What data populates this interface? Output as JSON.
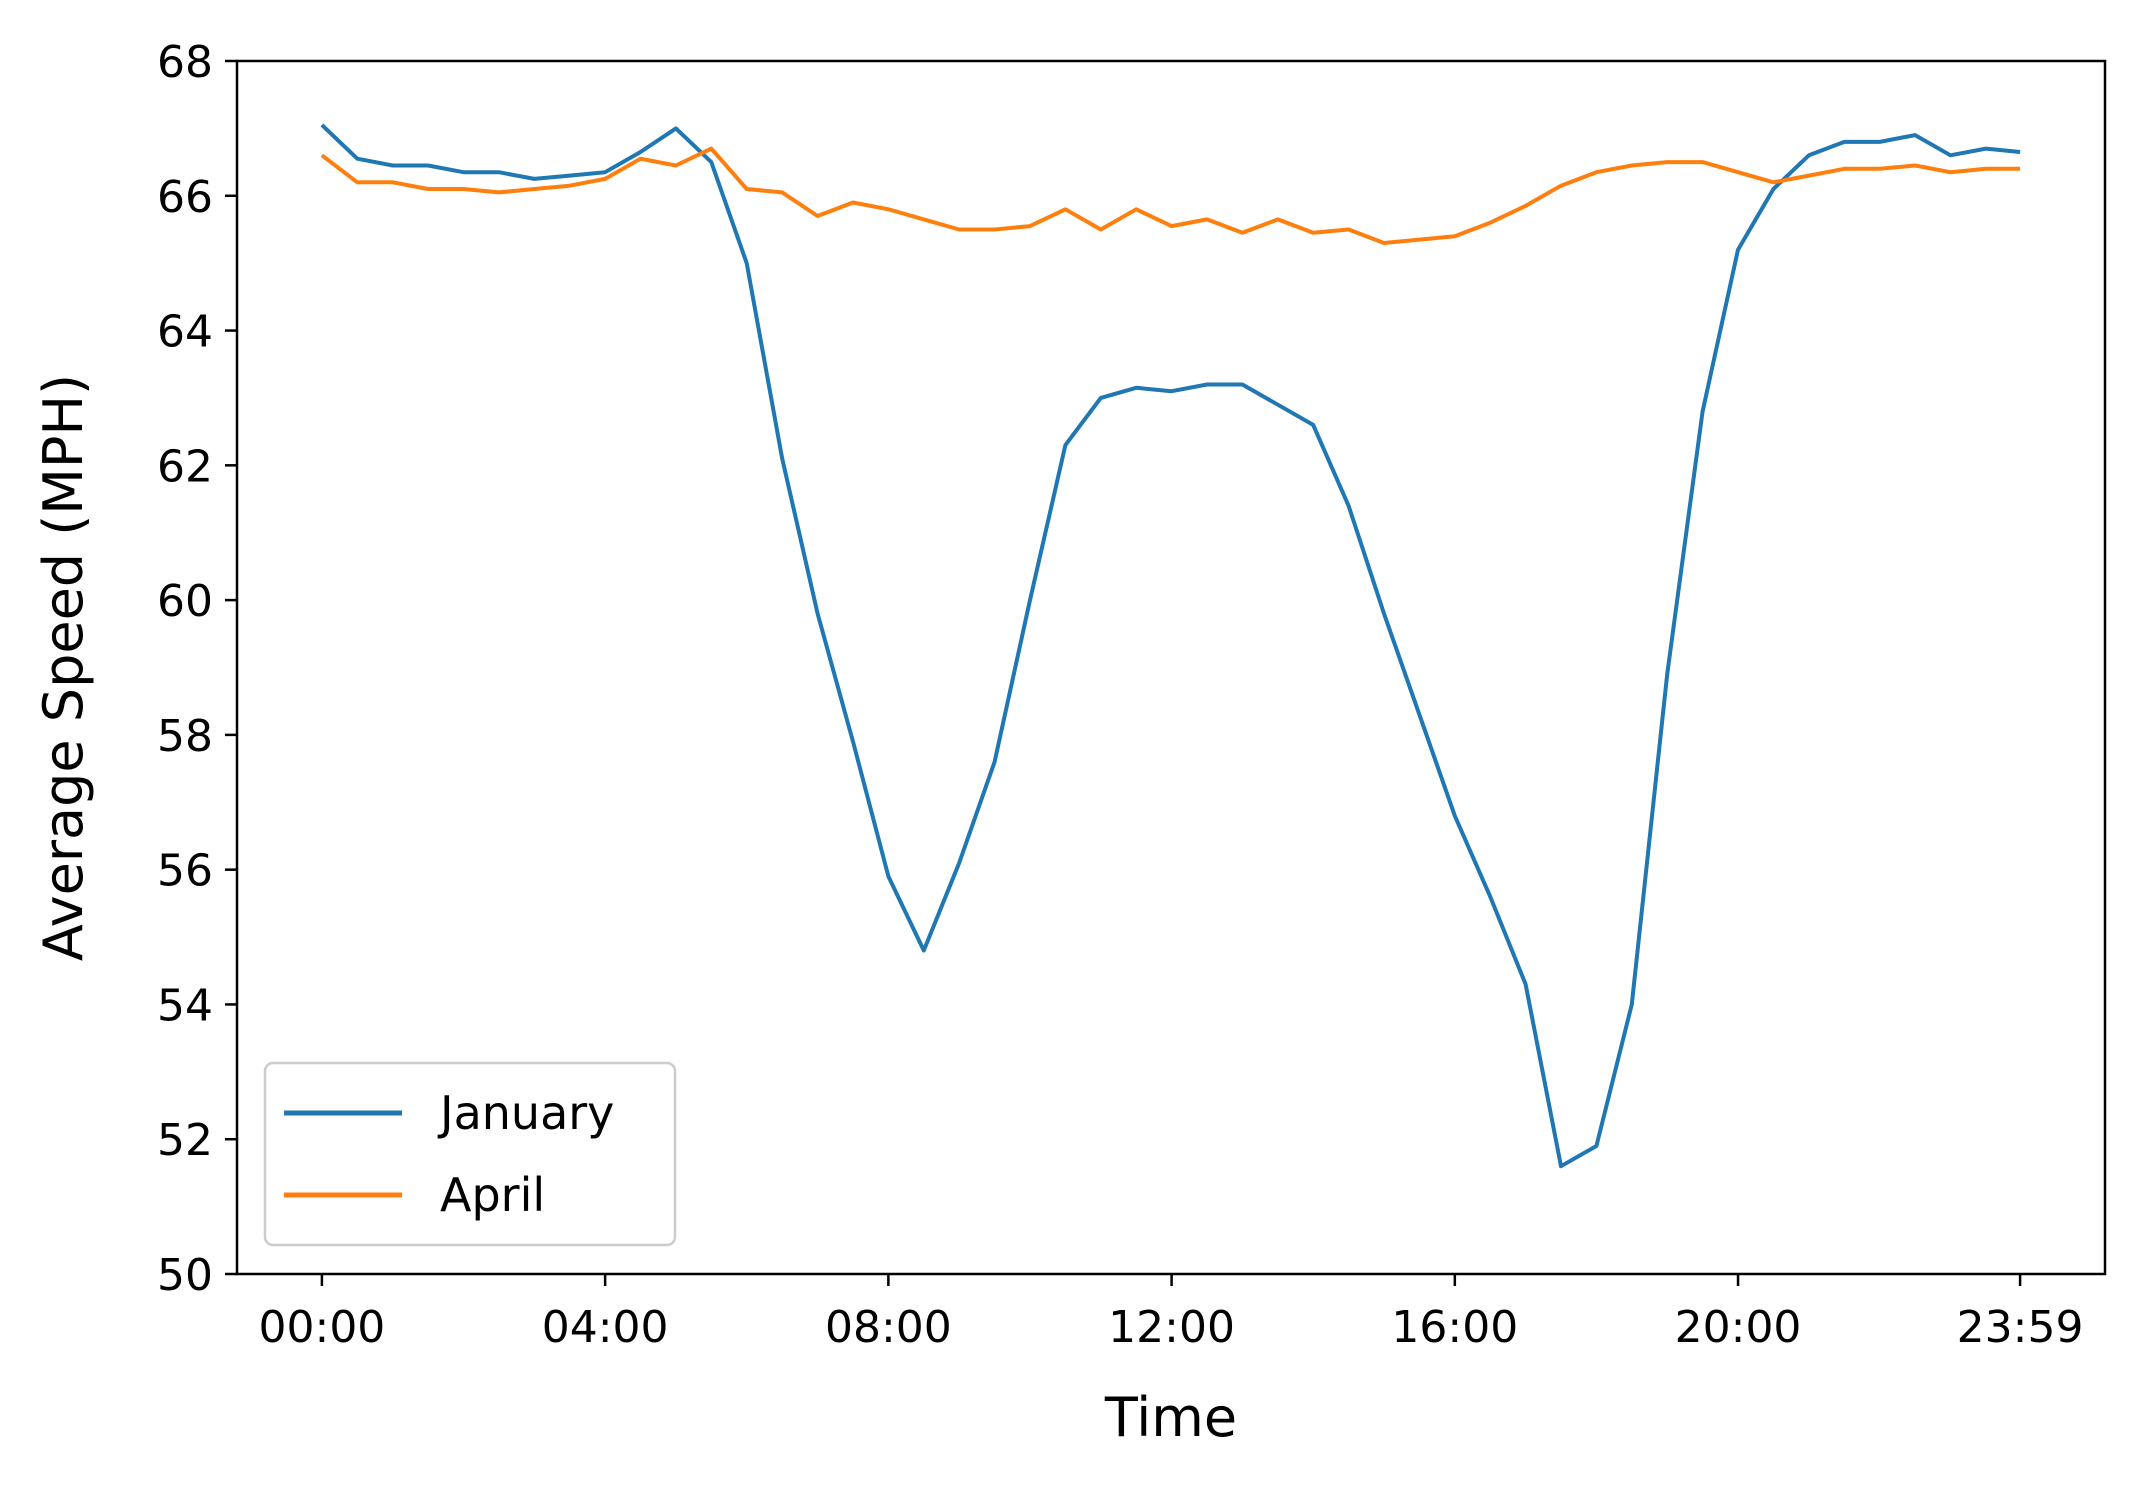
{
  "chart_data": {
    "type": "line",
    "title": "",
    "xlabel": "Time",
    "ylabel": "Average Speed (MPH)",
    "xlim": [
      "00:00",
      "23:59"
    ],
    "ylim": [
      50,
      68
    ],
    "x_ticks": [
      "00:00",
      "04:00",
      "08:00",
      "12:00",
      "16:00",
      "20:00",
      "23:59"
    ],
    "y_ticks": [
      50,
      52,
      54,
      56,
      58,
      60,
      62,
      64,
      66,
      68
    ],
    "grid": false,
    "legend_position": "lower-left",
    "series": [
      {
        "name": "January",
        "color": "#1f77b4",
        "x": [
          "00:00",
          "00:30",
          "01:00",
          "01:30",
          "02:00",
          "02:30",
          "03:00",
          "03:30",
          "04:00",
          "04:30",
          "05:00",
          "05:30",
          "06:00",
          "06:30",
          "07:00",
          "07:30",
          "08:00",
          "08:30",
          "09:00",
          "09:30",
          "10:00",
          "10:30",
          "11:00",
          "11:30",
          "12:00",
          "12:30",
          "13:00",
          "13:30",
          "14:00",
          "14:30",
          "15:00",
          "15:30",
          "16:00",
          "16:30",
          "17:00",
          "17:30",
          "18:00",
          "18:30",
          "19:00",
          "19:30",
          "20:00",
          "20:30",
          "21:00",
          "21:30",
          "22:00",
          "22:30",
          "23:00",
          "23:30",
          "23:59"
        ],
        "y": [
          67.05,
          66.55,
          66.45,
          66.45,
          66.35,
          66.35,
          66.25,
          66.3,
          66.35,
          66.65,
          67.0,
          66.5,
          65.0,
          62.1,
          59.8,
          57.9,
          55.9,
          54.8,
          56.1,
          57.6,
          60.0,
          62.3,
          63.0,
          63.15,
          63.1,
          63.2,
          63.2,
          62.9,
          62.6,
          61.4,
          59.8,
          58.3,
          56.8,
          55.6,
          54.3,
          51.6,
          51.9,
          54.0,
          58.9,
          62.8,
          65.2,
          66.1,
          66.6,
          66.8,
          66.8,
          66.9,
          66.6,
          66.7,
          66.65
        ]
      },
      {
        "name": "April",
        "color": "#ff7f0e",
        "x": [
          "00:00",
          "00:30",
          "01:00",
          "01:30",
          "02:00",
          "02:30",
          "03:00",
          "03:30",
          "04:00",
          "04:30",
          "05:00",
          "05:30",
          "06:00",
          "06:30",
          "07:00",
          "07:30",
          "08:00",
          "08:30",
          "09:00",
          "09:30",
          "10:00",
          "10:30",
          "11:00",
          "11:30",
          "12:00",
          "12:30",
          "13:00",
          "13:30",
          "14:00",
          "14:30",
          "15:00",
          "15:30",
          "16:00",
          "16:30",
          "17:00",
          "17:30",
          "18:00",
          "18:30",
          "19:00",
          "19:30",
          "20:00",
          "20:30",
          "21:00",
          "21:30",
          "22:00",
          "22:30",
          "23:00",
          "23:30",
          "23:59"
        ],
        "y": [
          66.6,
          66.2,
          66.2,
          66.1,
          66.1,
          66.05,
          66.1,
          66.15,
          66.25,
          66.55,
          66.45,
          66.7,
          66.1,
          66.05,
          65.7,
          65.9,
          65.8,
          65.65,
          65.5,
          65.5,
          65.55,
          65.8,
          65.5,
          65.8,
          65.55,
          65.65,
          65.45,
          65.65,
          65.45,
          65.5,
          65.3,
          65.35,
          65.4,
          65.6,
          65.85,
          66.15,
          66.35,
          66.45,
          66.5,
          66.5,
          66.35,
          66.2,
          66.3,
          66.4,
          66.4,
          66.45,
          66.35,
          66.4,
          66.4
        ]
      }
    ]
  }
}
